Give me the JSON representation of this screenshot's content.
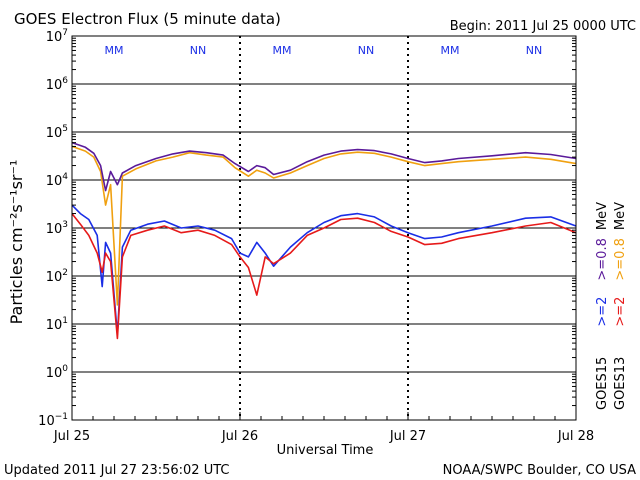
{
  "title": "GOES Electron Flux (5 minute data)",
  "begin": "Begin: 2011 Jul 25 0000 UTC",
  "updated": "Updated 2011 Jul 27 23:56:02 UTC",
  "credit": "NOAA/SWPC Boulder, CO USA",
  "colors": {
    "goes15_2mev": "#1a2ee6",
    "goes13_2mev": "#e61a1a",
    "goes15_08mev": "#5a1a9a",
    "goes13_08mev": "#f0a010",
    "marker_M": "#1a2ee6",
    "marker_N": "#1a2ee6",
    "axis": "#000000"
  },
  "chart_data": {
    "type": "line",
    "title": "GOES Electron Flux (5 minute data)",
    "xlabel": "Universal Time",
    "ylabel": "Particles cm⁻²s⁻¹sr⁻¹",
    "yscale": "log",
    "ylim_exp": [
      -1,
      7
    ],
    "y_ticks": [
      {
        "exp": 7,
        "label": "10",
        "sup": "7"
      },
      {
        "exp": 6,
        "label": "10",
        "sup": "6"
      },
      {
        "exp": 5,
        "label": "10",
        "sup": "5"
      },
      {
        "exp": 4,
        "label": "10",
        "sup": "4"
      },
      {
        "exp": 3,
        "label": "10",
        "sup": "3"
      },
      {
        "exp": 2,
        "label": "10",
        "sup": "2"
      },
      {
        "exp": 1,
        "label": "10",
        "sup": "1"
      },
      {
        "exp": 0,
        "label": "10",
        "sup": "0"
      },
      {
        "exp": -1,
        "label": "10",
        "sup": "−1"
      }
    ],
    "xlim_days": [
      0,
      3
    ],
    "x_ticks": [
      {
        "day": 0,
        "label": "Jul 25"
      },
      {
        "day": 1,
        "label": "Jul 26"
      },
      {
        "day": 2,
        "label": "Jul 27"
      },
      {
        "day": 3,
        "label": "Jul 28"
      }
    ],
    "threshold_line": {
      "value": 1000,
      "style": "dashed"
    },
    "markers": [
      {
        "day": 0.25,
        "label": "MM"
      },
      {
        "day": 0.75,
        "label": "NN"
      },
      {
        "day": 1.25,
        "label": "MM"
      },
      {
        "day": 1.75,
        "label": "NN"
      },
      {
        "day": 2.25,
        "label": "MM"
      },
      {
        "day": 2.75,
        "label": "NN"
      }
    ],
    "legend": {
      "placement": "right",
      "columns": [
        {
          "sat": "GOES15",
          "items": [
            {
              "label": ">=2",
              "color_key": "goes15_2mev"
            },
            {
              "label": ">=0.8",
              "color_key": "goes15_08mev"
            }
          ],
          "unit": "MeV"
        },
        {
          "sat": "GOES13",
          "items": [
            {
              "label": ">=2",
              "color_key": "goes13_2mev"
            },
            {
              "label": ">=0.8",
              "color_key": "goes13_08mev"
            }
          ],
          "unit": "MeV"
        }
      ]
    },
    "series": [
      {
        "name": "GOES13 >=0.8 MeV",
        "color_key": "goes13_08mev",
        "points": [
          [
            0.0,
            50000
          ],
          [
            0.08,
            40000
          ],
          [
            0.13,
            30000
          ],
          [
            0.17,
            15000
          ],
          [
            0.2,
            3000
          ],
          [
            0.23,
            8000
          ],
          [
            0.27,
            25
          ],
          [
            0.3,
            12000
          ],
          [
            0.38,
            17000
          ],
          [
            0.5,
            25000
          ],
          [
            0.6,
            30000
          ],
          [
            0.7,
            37000
          ],
          [
            0.8,
            33000
          ],
          [
            0.9,
            30000
          ],
          [
            0.97,
            18000
          ],
          [
            1.05,
            12000
          ],
          [
            1.1,
            16000
          ],
          [
            1.15,
            14000
          ],
          [
            1.2,
            11000
          ],
          [
            1.3,
            14000
          ],
          [
            1.4,
            20000
          ],
          [
            1.5,
            28000
          ],
          [
            1.6,
            35000
          ],
          [
            1.7,
            38000
          ],
          [
            1.8,
            36000
          ],
          [
            1.9,
            30000
          ],
          [
            2.0,
            24000
          ],
          [
            2.1,
            20000
          ],
          [
            2.2,
            22000
          ],
          [
            2.3,
            24000
          ],
          [
            2.5,
            27000
          ],
          [
            2.7,
            30000
          ],
          [
            2.85,
            27000
          ],
          [
            3.0,
            22000
          ]
        ]
      },
      {
        "name": "GOES15 >=0.8 MeV",
        "color_key": "goes15_08mev",
        "points": [
          [
            0.0,
            60000
          ],
          [
            0.08,
            48000
          ],
          [
            0.13,
            36000
          ],
          [
            0.17,
            20000
          ],
          [
            0.2,
            6000
          ],
          [
            0.23,
            15000
          ],
          [
            0.27,
            8000
          ],
          [
            0.3,
            14000
          ],
          [
            0.38,
            20000
          ],
          [
            0.5,
            28000
          ],
          [
            0.6,
            35000
          ],
          [
            0.7,
            40000
          ],
          [
            0.8,
            37000
          ],
          [
            0.9,
            33000
          ],
          [
            0.97,
            22000
          ],
          [
            1.05,
            15000
          ],
          [
            1.1,
            20000
          ],
          [
            1.15,
            18000
          ],
          [
            1.2,
            13000
          ],
          [
            1.3,
            16000
          ],
          [
            1.4,
            24000
          ],
          [
            1.5,
            33000
          ],
          [
            1.6,
            40000
          ],
          [
            1.7,
            43000
          ],
          [
            1.8,
            41000
          ],
          [
            1.9,
            35000
          ],
          [
            2.0,
            28000
          ],
          [
            2.1,
            23000
          ],
          [
            2.2,
            25000
          ],
          [
            2.3,
            28000
          ],
          [
            2.5,
            32000
          ],
          [
            2.7,
            37000
          ],
          [
            2.85,
            34000
          ],
          [
            3.0,
            28000
          ]
        ]
      },
      {
        "name": "GOES15 >=2 MeV",
        "color_key": "goes15_2mev",
        "points": [
          [
            0.0,
            3000
          ],
          [
            0.05,
            2000
          ],
          [
            0.1,
            1500
          ],
          [
            0.15,
            700
          ],
          [
            0.18,
            60
          ],
          [
            0.2,
            500
          ],
          [
            0.23,
            300
          ],
          [
            0.27,
            6
          ],
          [
            0.3,
            400
          ],
          [
            0.35,
            900
          ],
          [
            0.45,
            1200
          ],
          [
            0.55,
            1400
          ],
          [
            0.65,
            1000
          ],
          [
            0.75,
            1100
          ],
          [
            0.85,
            900
          ],
          [
            0.95,
            600
          ],
          [
            1.0,
            300
          ],
          [
            1.05,
            250
          ],
          [
            1.1,
            500
          ],
          [
            1.15,
            300
          ],
          [
            1.2,
            160
          ],
          [
            1.3,
            400
          ],
          [
            1.4,
            800
          ],
          [
            1.5,
            1300
          ],
          [
            1.6,
            1800
          ],
          [
            1.7,
            2000
          ],
          [
            1.8,
            1700
          ],
          [
            1.9,
            1100
          ],
          [
            2.0,
            800
          ],
          [
            2.1,
            600
          ],
          [
            2.2,
            650
          ],
          [
            2.3,
            800
          ],
          [
            2.5,
            1100
          ],
          [
            2.7,
            1600
          ],
          [
            2.85,
            1700
          ],
          [
            3.0,
            1100
          ]
        ]
      },
      {
        "name": "GOES13 >=2 MeV",
        "color_key": "goes13_2mev",
        "points": [
          [
            0.0,
            2000
          ],
          [
            0.05,
            1200
          ],
          [
            0.1,
            700
          ],
          [
            0.15,
            300
          ],
          [
            0.18,
            120
          ],
          [
            0.2,
            300
          ],
          [
            0.23,
            200
          ],
          [
            0.27,
            5
          ],
          [
            0.3,
            250
          ],
          [
            0.35,
            700
          ],
          [
            0.45,
            900
          ],
          [
            0.55,
            1100
          ],
          [
            0.65,
            800
          ],
          [
            0.75,
            900
          ],
          [
            0.85,
            700
          ],
          [
            0.95,
            450
          ],
          [
            1.0,
            250
          ],
          [
            1.05,
            150
          ],
          [
            1.1,
            40
          ],
          [
            1.15,
            250
          ],
          [
            1.2,
            180
          ],
          [
            1.3,
            300
          ],
          [
            1.4,
            700
          ],
          [
            1.5,
            1000
          ],
          [
            1.6,
            1500
          ],
          [
            1.7,
            1600
          ],
          [
            1.8,
            1300
          ],
          [
            1.9,
            850
          ],
          [
            2.0,
            650
          ],
          [
            2.1,
            450
          ],
          [
            2.2,
            480
          ],
          [
            2.3,
            600
          ],
          [
            2.5,
            800
          ],
          [
            2.7,
            1100
          ],
          [
            2.85,
            1300
          ],
          [
            3.0,
            800
          ]
        ]
      }
    ]
  }
}
